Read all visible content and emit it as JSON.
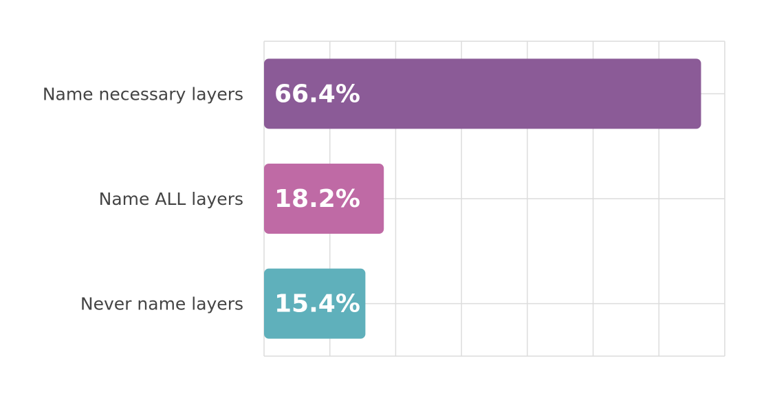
{
  "chart_data": {
    "type": "hbar",
    "categories": [
      "Name necessary layers",
      "Name ALL layers",
      "Never name layers"
    ],
    "values": [
      66.4,
      18.2,
      15.4
    ],
    "value_labels": [
      "66.4%",
      "18.2%",
      "15.4%"
    ],
    "colors": [
      "#8b5b97",
      "#bf6aa5",
      "#5fb0bb"
    ],
    "xlim": [
      0,
      70
    ],
    "xticks": [
      0,
      10,
      20,
      30,
      40,
      50,
      60,
      70
    ],
    "grid": true
  }
}
